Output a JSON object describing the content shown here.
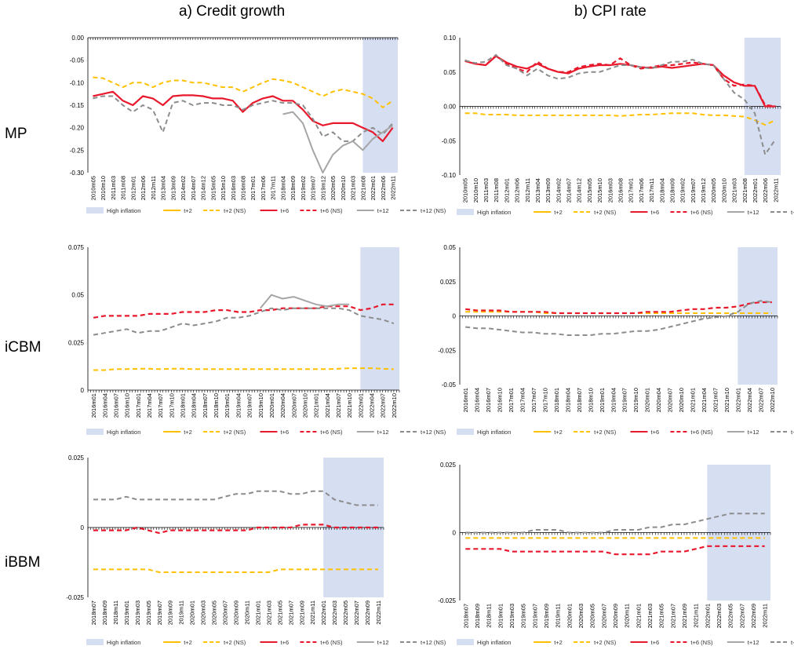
{
  "figure": {
    "col_titles": [
      "a) Credit growth",
      "b) CPI rate"
    ],
    "row_labels": [
      "MP",
      "iCBM",
      "iBBM"
    ],
    "legend": [
      "High inflation",
      "t+2",
      "t+2 (NS)",
      "t+6",
      "t+6 (NS)",
      "t+12",
      "t+12 (NS)"
    ]
  },
  "colors": {
    "t2": "#FFC000",
    "t6": "#E8192C",
    "t12": "#A6A6A6",
    "t12ns": "#8C8C8C",
    "shade": "#D6DEF2",
    "axis": "#000000"
  },
  "chart_data": [
    {
      "id": "mp_credit",
      "type": "line",
      "title": "a) Credit growth",
      "row": "MP",
      "ylim": [
        -0.3,
        0.0
      ],
      "yticks": [
        "0.00",
        "-0.05",
        "-0.10",
        "-0.15",
        "-0.20",
        "-0.25",
        "-0.30"
      ],
      "x_labels": [
        "2010m05",
        "2010m10",
        "2011m03",
        "2011m08",
        "2012m01",
        "2012m06",
        "2012m11",
        "2013m04",
        "2013m09",
        "2014m02",
        "2014m07",
        "2014m12",
        "2015m05",
        "2015m10",
        "2016m03",
        "2016m08",
        "2017m01",
        "2017m06",
        "2017m11",
        "2018m04",
        "2018m09",
        "2019m02",
        "2019m07",
        "2019m12",
        "2020m05",
        "2020m10",
        "2021m03",
        "2021m08",
        "2022m01",
        "2022m06",
        "2022m11"
      ],
      "shade": [
        "2021m08",
        "2022m11"
      ],
      "series": [
        {
          "name": "t+2 (NS)",
          "style": "t2ns",
          "values": [
            -0.088,
            -0.09,
            -0.1,
            -0.11,
            -0.1,
            -0.1,
            -0.11,
            -0.1,
            -0.095,
            -0.095,
            -0.1,
            -0.1,
            -0.105,
            -0.11,
            -0.11,
            -0.12,
            -0.11,
            -0.1,
            -0.092,
            -0.095,
            -0.1,
            -0.11,
            -0.12,
            -0.13,
            -0.12,
            -0.115,
            -0.12,
            -0.125,
            -0.135,
            -0.155,
            -0.14
          ]
        },
        {
          "name": "t+6",
          "style": "t6",
          "values": [
            -0.13,
            -0.125,
            -0.12,
            -0.14,
            -0.15,
            -0.13,
            -0.135,
            -0.15,
            -0.13,
            -0.128,
            -0.128,
            -0.13,
            -0.135,
            -0.135,
            -0.14,
            -0.165,
            -0.145,
            -0.135,
            -0.13,
            -0.14,
            -0.14,
            -0.16,
            -0.185,
            -0.195,
            -0.19,
            -0.19,
            -0.19,
            -0.2,
            -0.21,
            -0.23,
            -0.2
          ]
        },
        {
          "name": "t+12 (NS)",
          "style": "t12ns",
          "values": [
            -0.135,
            -0.13,
            -0.13,
            -0.15,
            -0.165,
            -0.15,
            -0.16,
            -0.21,
            -0.145,
            -0.14,
            -0.15,
            -0.145,
            -0.145,
            -0.15,
            -0.15,
            -0.16,
            -0.15,
            -0.145,
            -0.14,
            -0.145,
            -0.145,
            -0.15,
            -0.18,
            -0.22,
            -0.21,
            -0.23,
            -0.23,
            -0.21,
            -0.2,
            -0.215,
            -0.19
          ]
        },
        {
          "name": "t+12",
          "style": "t12",
          "values": [
            null,
            null,
            null,
            null,
            null,
            null,
            null,
            null,
            null,
            null,
            null,
            null,
            null,
            null,
            null,
            null,
            null,
            null,
            null,
            -0.17,
            -0.165,
            -0.19,
            -0.25,
            -0.3,
            -0.26,
            -0.24,
            -0.23,
            -0.25,
            -0.225,
            -0.21,
            -0.195
          ]
        }
      ]
    },
    {
      "id": "mp_cpi",
      "type": "line",
      "title": "b) CPI rate",
      "row": "MP",
      "ylim": [
        -0.1,
        0.1
      ],
      "yticks": [
        "0.10",
        "0.05",
        "0.00",
        "-0.05",
        "-0.10"
      ],
      "x_labels": [
        "2010m05",
        "2010m10",
        "2011m03",
        "2011m08",
        "2012m01",
        "2012m06",
        "2012m11",
        "2013m04",
        "2013m09",
        "2014m02",
        "2014m07",
        "2014m12",
        "2015m05",
        "2015m10",
        "2016m03",
        "2016m08",
        "2017m01",
        "2017m06",
        "2017m11",
        "2018m04",
        "2018m09",
        "2019m02",
        "2019m07",
        "2019m12",
        "2020m05",
        "2020m10",
        "2021m03",
        "2021m08",
        "2022m01",
        "2022m06",
        "2022m11"
      ],
      "shade": [
        "2021m08",
        "2022m11"
      ],
      "series": [
        {
          "name": "t+2 (NS)",
          "style": "t2ns",
          "values": [
            -0.01,
            -0.01,
            -0.012,
            -0.012,
            -0.012,
            -0.013,
            -0.013,
            -0.013,
            -0.013,
            -0.013,
            -0.013,
            -0.013,
            -0.013,
            -0.013,
            -0.013,
            -0.014,
            -0.013,
            -0.012,
            -0.012,
            -0.011,
            -0.01,
            -0.01,
            -0.01,
            -0.012,
            -0.013,
            -0.013,
            -0.014,
            -0.015,
            -0.02,
            -0.027,
            -0.02
          ]
        },
        {
          "name": "t+6",
          "style": "t6",
          "values": [
            0.066,
            0.062,
            0.06,
            0.073,
            0.064,
            0.058,
            0.055,
            0.062,
            0.055,
            0.05,
            0.048,
            0.055,
            0.058,
            0.06,
            0.06,
            0.062,
            0.06,
            0.057,
            0.056,
            0.058,
            0.056,
            0.058,
            0.06,
            0.062,
            0.06,
            0.045,
            0.035,
            0.03,
            0.03,
            0.0,
            0.0
          ]
        },
        {
          "name": "t+6 (NS)",
          "style": "t6ns",
          "values": [
            0.067,
            0.062,
            0.06,
            0.074,
            0.062,
            0.055,
            0.05,
            0.065,
            0.055,
            0.05,
            0.05,
            0.057,
            0.06,
            0.062,
            0.06,
            0.07,
            0.06,
            0.055,
            0.057,
            0.06,
            0.06,
            0.062,
            0.064,
            0.062,
            0.06,
            0.04,
            0.03,
            0.032,
            0.03,
            0.002,
            0.0
          ]
        },
        {
          "name": "t+12 (NS)",
          "style": "t12ns",
          "values": [
            0.067,
            0.063,
            0.065,
            0.075,
            0.06,
            0.055,
            0.045,
            0.055,
            0.045,
            0.04,
            0.042,
            0.048,
            0.05,
            0.05,
            0.055,
            0.06,
            0.06,
            0.057,
            0.055,
            0.06,
            0.065,
            0.065,
            0.068,
            0.062,
            0.06,
            0.04,
            0.02,
            0.01,
            -0.01,
            -0.07,
            -0.048
          ]
        }
      ]
    },
    {
      "id": "icbm_credit",
      "type": "line",
      "title": "a) Credit growth",
      "row": "iCBM",
      "ylim": [
        0,
        0.075
      ],
      "yticks": [
        "0.075",
        "0.05",
        "0.025",
        "0"
      ],
      "x_labels": [
        "2016m01",
        "2016m04",
        "2016m07",
        "2016m10",
        "2017m01",
        "2017m04",
        "2017m07",
        "2017m10",
        "2018m01",
        "2018m04",
        "2018m07",
        "2018m10",
        "2019m01",
        "2019m04",
        "2019m07",
        "2019m10",
        "2020m01",
        "2020m04",
        "2020m07",
        "2020m10",
        "2021m01",
        "2021m04",
        "2021m07",
        "2021m10",
        "2022m01",
        "2022m04",
        "2022m07",
        "2022m10"
      ],
      "shade": [
        "2022m01",
        "2022m10"
      ],
      "series": [
        {
          "name": "t+2 (NS)",
          "style": "t2ns",
          "values": [
            0.0105,
            0.0105,
            0.011,
            0.011,
            0.0112,
            0.0112,
            0.011,
            0.0112,
            0.0112,
            0.011,
            0.011,
            0.011,
            0.011,
            0.011,
            0.011,
            0.011,
            0.011,
            0.011,
            0.011,
            0.011,
            0.011,
            0.011,
            0.0112,
            0.0115,
            0.0115,
            0.0115,
            0.0112,
            0.011
          ]
        },
        {
          "name": "t+6 (NS)",
          "style": "t6ns",
          "values": [
            0.038,
            0.039,
            0.039,
            0.039,
            0.039,
            0.04,
            0.04,
            0.04,
            0.041,
            0.041,
            0.041,
            0.042,
            0.042,
            0.041,
            0.041,
            0.042,
            0.042,
            0.043,
            0.043,
            0.043,
            0.043,
            0.044,
            0.044,
            0.044,
            0.042,
            0.043,
            0.045,
            0.045
          ]
        },
        {
          "name": "t+12",
          "style": "t12",
          "values": [
            null,
            null,
            null,
            null,
            null,
            null,
            null,
            null,
            null,
            null,
            null,
            null,
            null,
            null,
            null,
            0.043,
            0.05,
            0.048,
            0.049,
            0.047,
            0.045,
            0.044,
            0.045,
            0.045,
            null,
            null,
            null,
            null
          ]
        },
        {
          "name": "t+12 (NS)",
          "style": "t12ns",
          "values": [
            0.029,
            0.03,
            0.031,
            0.032,
            0.03,
            0.031,
            0.031,
            0.033,
            0.035,
            0.034,
            0.035,
            0.036,
            0.038,
            0.038,
            0.039,
            0.041,
            0.043,
            0.042,
            0.043,
            0.043,
            0.043,
            0.043,
            0.043,
            0.042,
            0.039,
            0.038,
            0.037,
            0.035
          ]
        }
      ]
    },
    {
      "id": "icbm_cpi",
      "type": "line",
      "title": "b) CPI rate",
      "row": "iCBM",
      "ylim": [
        -0.05,
        0.05
      ],
      "yticks": [
        "0.05",
        "0.025",
        "0",
        "-0.025",
        "-0.05"
      ],
      "x_labels": [
        "2016m01",
        "2016m04",
        "2016m07",
        "2016m10",
        "2017m01",
        "2017m04",
        "2017m07",
        "2017m10",
        "2018m01",
        "2018m04",
        "2018m07",
        "2018m10",
        "2019m01",
        "2019m04",
        "2019m07",
        "2019m10",
        "2020m01",
        "2020m04",
        "2020m07",
        "2020m10",
        "2021m01",
        "2021m04",
        "2021m07",
        "2021m10",
        "2022m01",
        "2022m04",
        "2022m07",
        "2022m10"
      ],
      "shade": [
        "2022m01",
        "2022m10"
      ],
      "series": [
        {
          "name": "t+2 (NS)",
          "style": "t2ns",
          "values": [
            0.003,
            0.003,
            0.003,
            0.003,
            0.003,
            0.003,
            0.003,
            0.002,
            0.002,
            0.002,
            0.002,
            0.002,
            0.002,
            0.002,
            0.002,
            0.002,
            0.002,
            0.002,
            0.002,
            0.002,
            0.002,
            0.002,
            0.002,
            0.002,
            0.002,
            0.002,
            0.002,
            0.002
          ]
        },
        {
          "name": "t+6 (NS)",
          "style": "t6ns",
          "values": [
            0.005,
            0.004,
            0.004,
            0.004,
            0.003,
            0.003,
            0.003,
            0.003,
            0.002,
            0.002,
            0.002,
            0.002,
            0.002,
            0.002,
            0.002,
            0.002,
            0.003,
            0.003,
            0.003,
            0.004,
            0.005,
            0.005,
            0.006,
            0.006,
            0.007,
            0.009,
            0.01,
            0.01
          ]
        },
        {
          "name": "t+12 (NS)",
          "style": "t12ns",
          "values": [
            -0.008,
            -0.009,
            -0.009,
            -0.01,
            -0.011,
            -0.012,
            -0.012,
            -0.013,
            -0.013,
            -0.014,
            -0.014,
            -0.014,
            -0.013,
            -0.013,
            -0.012,
            -0.011,
            -0.011,
            -0.01,
            -0.008,
            -0.006,
            -0.004,
            -0.002,
            -0.001,
            0.0,
            0.003,
            0.009,
            0.011,
            0.01
          ]
        }
      ]
    },
    {
      "id": "ibbm_credit",
      "type": "line",
      "title": "a) Credit growth",
      "row": "iBBM",
      "ylim": [
        -0.025,
        0.025
      ],
      "yticks": [
        "0.025",
        "0",
        "-0.025"
      ],
      "x_labels": [
        "2018m07",
        "2018m09",
        "2018m11",
        "2019m01",
        "2019m03",
        "2019m05",
        "2019m07",
        "2019m09",
        "2019m11",
        "2020m01",
        "2020m03",
        "2020m05",
        "2020m07",
        "2020m09",
        "2020m11",
        "2021m01",
        "2021m03",
        "2021m05",
        "2021m07",
        "2021m09",
        "2021m11",
        "2022m01",
        "2022m03",
        "2022m05",
        "2022m07",
        "2022m09",
        "2022m11"
      ],
      "shade": [
        "2022m01",
        "2022m11"
      ],
      "series": [
        {
          "name": "t+2 (NS)",
          "style": "t2ns",
          "values": [
            -0.015,
            -0.015,
            -0.015,
            -0.015,
            -0.015,
            -0.015,
            -0.016,
            -0.016,
            -0.016,
            -0.016,
            -0.016,
            -0.016,
            -0.016,
            -0.016,
            -0.016,
            -0.016,
            -0.016,
            -0.015,
            -0.015,
            -0.015,
            -0.015,
            -0.015,
            -0.015,
            -0.015,
            -0.015,
            -0.015,
            -0.015
          ]
        },
        {
          "name": "t+6 (NS)",
          "style": "t6ns",
          "values": [
            -0.001,
            -0.001,
            -0.001,
            -0.001,
            0.0,
            -0.001,
            -0.002,
            -0.001,
            -0.001,
            -0.001,
            -0.001,
            -0.001,
            -0.001,
            -0.001,
            -0.001,
            0.0,
            0.0,
            0.0,
            0.0,
            0.001,
            0.001,
            0.001,
            0.0,
            0.0,
            0.0,
            0.0,
            0.0
          ]
        },
        {
          "name": "t+12 (NS)",
          "style": "t12ns",
          "values": [
            0.01,
            0.01,
            0.01,
            0.011,
            0.01,
            0.01,
            0.01,
            0.01,
            0.01,
            0.01,
            0.01,
            0.01,
            0.011,
            0.012,
            0.012,
            0.013,
            0.013,
            0.013,
            0.012,
            0.012,
            0.013,
            0.013,
            0.01,
            0.009,
            0.008,
            0.008,
            0.008
          ]
        }
      ]
    },
    {
      "id": "ibbm_cpi",
      "type": "line",
      "title": "b) CPI rate",
      "row": "iBBM",
      "ylim": [
        -0.025,
        0.025
      ],
      "yticks": [
        "0.025",
        "0",
        "-0.025"
      ],
      "x_labels": [
        "2018m07",
        "2018m09",
        "2018m11",
        "2019m01",
        "2019m03",
        "2019m05",
        "2019m07",
        "2019m09",
        "2019m11",
        "2020m01",
        "2020m03",
        "2020m05",
        "2020m07",
        "2020m09",
        "2020m11",
        "2021m01",
        "2021m03",
        "2021m05",
        "2021m07",
        "2021m09",
        "2021m11",
        "2022m01",
        "2022m03",
        "2022m05",
        "2022m07",
        "2022m09",
        "2022m11"
      ],
      "shade": [
        "2022m01",
        "2022m11"
      ],
      "series": [
        {
          "name": "t+2 (NS)",
          "style": "t2ns",
          "values": [
            -0.002,
            -0.002,
            -0.002,
            -0.002,
            -0.002,
            -0.002,
            -0.002,
            -0.002,
            -0.002,
            -0.002,
            -0.002,
            -0.002,
            -0.002,
            -0.002,
            -0.002,
            -0.002,
            -0.002,
            -0.002,
            -0.002,
            -0.002,
            -0.002,
            -0.002,
            -0.002,
            -0.002,
            -0.002,
            -0.002,
            -0.002
          ]
        },
        {
          "name": "t+6 (NS)",
          "style": "t6ns",
          "values": [
            -0.006,
            -0.006,
            -0.006,
            -0.006,
            -0.007,
            -0.007,
            -0.007,
            -0.007,
            -0.007,
            -0.007,
            -0.007,
            -0.007,
            -0.007,
            -0.008,
            -0.008,
            -0.008,
            -0.008,
            -0.007,
            -0.007,
            -0.007,
            -0.006,
            -0.005,
            -0.005,
            -0.005,
            -0.005,
            -0.005,
            -0.005
          ]
        },
        {
          "name": "t+12 (NS)",
          "style": "t12ns",
          "values": [
            0.0,
            0.0,
            0.0,
            0.0,
            0.0,
            0.0,
            0.001,
            0.001,
            0.001,
            0.0,
            0.0,
            0.0,
            0.0,
            0.001,
            0.001,
            0.001,
            0.002,
            0.002,
            0.003,
            0.003,
            0.004,
            0.005,
            0.006,
            0.007,
            0.007,
            0.007,
            0.007
          ]
        }
      ]
    }
  ]
}
